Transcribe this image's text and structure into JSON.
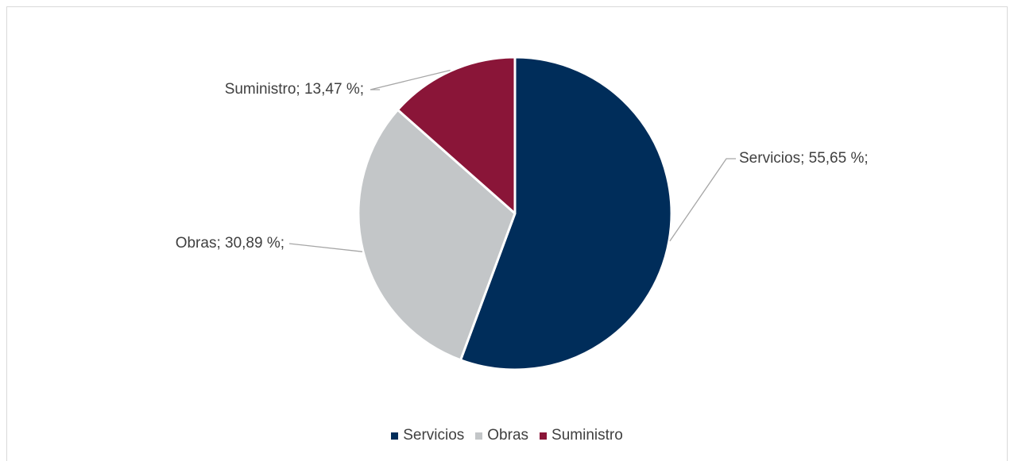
{
  "chart_data": {
    "type": "pie",
    "title": "",
    "slices": [
      {
        "name": "Servicios",
        "value": 55.65,
        "label": "Servicios; 55,65 %;",
        "color": "#002d5a"
      },
      {
        "name": "Obras",
        "value": 30.89,
        "label": "Obras; 30,89 %;",
        "color": "#c3c6c8"
      },
      {
        "name": "Suministro",
        "value": 13.47,
        "label": "Suministro; 13,47 %;",
        "color": "#8a1538"
      }
    ],
    "legend_placement": "bottom",
    "legend": {
      "items": [
        {
          "label": "Servicios",
          "color": "#002d5a"
        },
        {
          "label": "Obras",
          "color": "#c3c6c8"
        },
        {
          "label": "Suministro",
          "color": "#8a1538"
        }
      ]
    },
    "leader_line_color": "#a6a6a6"
  }
}
